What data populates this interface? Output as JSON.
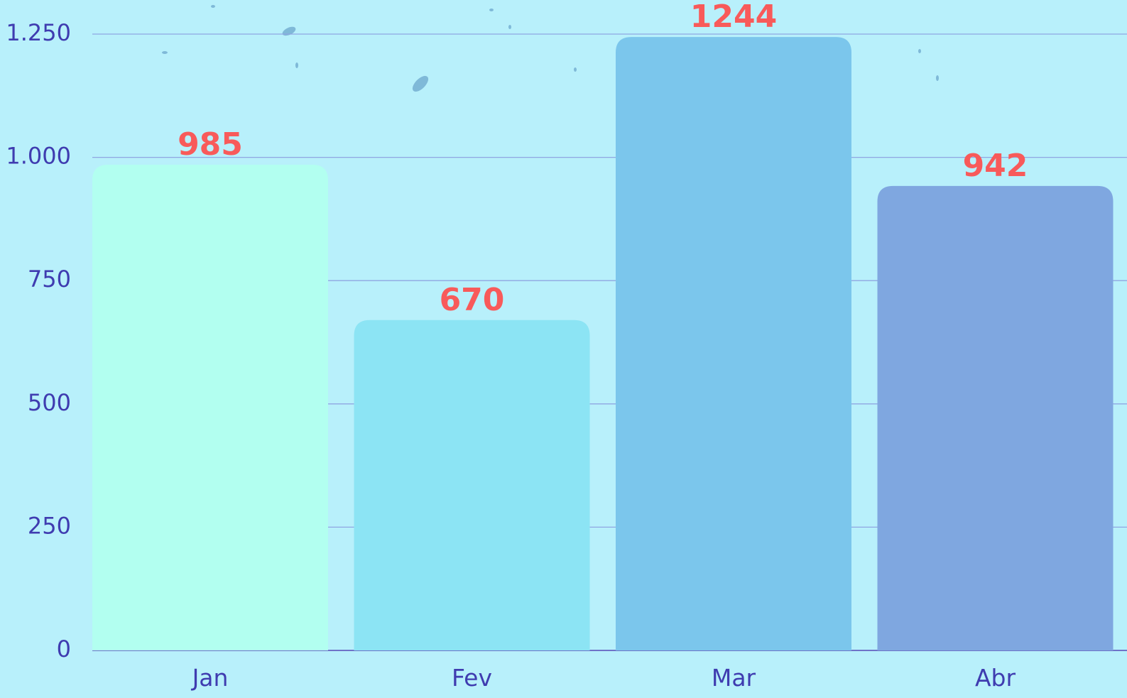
{
  "chart_data": {
    "type": "bar",
    "categories": [
      "Jan",
      "Fev",
      "Mar",
      "Abr"
    ],
    "values": [
      985,
      670,
      1244,
      942
    ],
    "colors": [
      "#b2fff0",
      "#8ce4f4",
      "#7bc6ec",
      "#7fa7e0"
    ],
    "ylim": [
      0,
      1250
    ],
    "yticks": [
      0,
      250,
      500,
      750,
      {
        "value": 1000,
        "label": "1.000"
      },
      {
        "value": 1250,
        "label": "1.250"
      }
    ],
    "grid": true
  }
}
